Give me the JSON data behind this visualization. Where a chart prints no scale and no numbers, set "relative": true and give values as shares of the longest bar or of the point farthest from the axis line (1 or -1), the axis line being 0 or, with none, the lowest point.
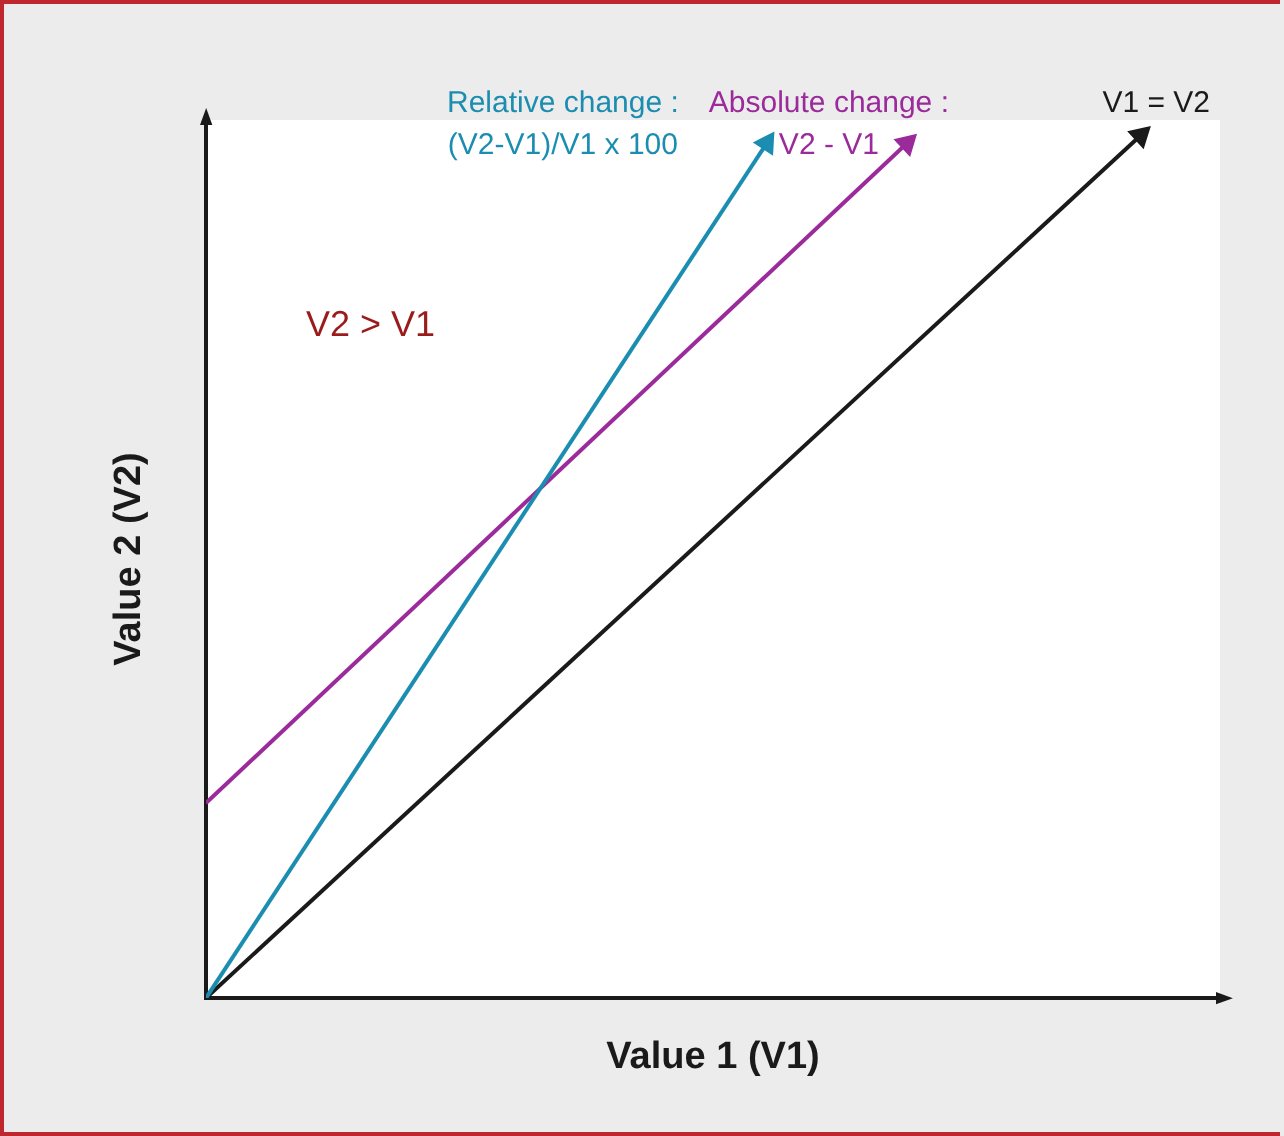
{
  "chart_data": {
    "type": "line",
    "relative": true,
    "xlabel": "Value 1 (V1)",
    "ylabel": "Value 2 (V2)",
    "annotations": [
      "V2 > V1"
    ],
    "legend": false,
    "grid": false,
    "categories": [
      null,
      null,
      null,
      null,
      null,
      null,
      null,
      null,
      null,
      null,
      null,
      null,
      null,
      null,
      null,
      null,
      null,
      null,
      null,
      null,
      null
    ],
    "series": [
      {
        "name": "Relative change : (V2-V1)/V1 x 100",
        "color": "#1b8db0",
        "values": [
          0,
          null,
          null,
          null,
          null,
          null,
          null,
          null,
          null,
          null,
          null,
          null,
          0.991,
          null,
          null,
          null,
          null,
          null,
          null,
          null,
          null
        ]
      },
      {
        "name": "Absolute change : V2 - V1",
        "color": "#9b2a9b",
        "values": [
          0.226,
          null,
          null,
          null,
          null,
          null,
          null,
          null,
          null,
          null,
          null,
          null,
          null,
          null,
          null,
          0.991,
          null,
          null,
          null,
          null,
          null
        ]
      },
      {
        "name": "V1 = V2",
        "color": "#1a1a1a",
        "values": [
          0,
          null,
          null,
          null,
          null,
          null,
          null,
          null,
          null,
          null,
          null,
          null,
          null,
          null,
          null,
          null,
          null,
          null,
          null,
          null,
          1
        ]
      }
    ]
  }
}
